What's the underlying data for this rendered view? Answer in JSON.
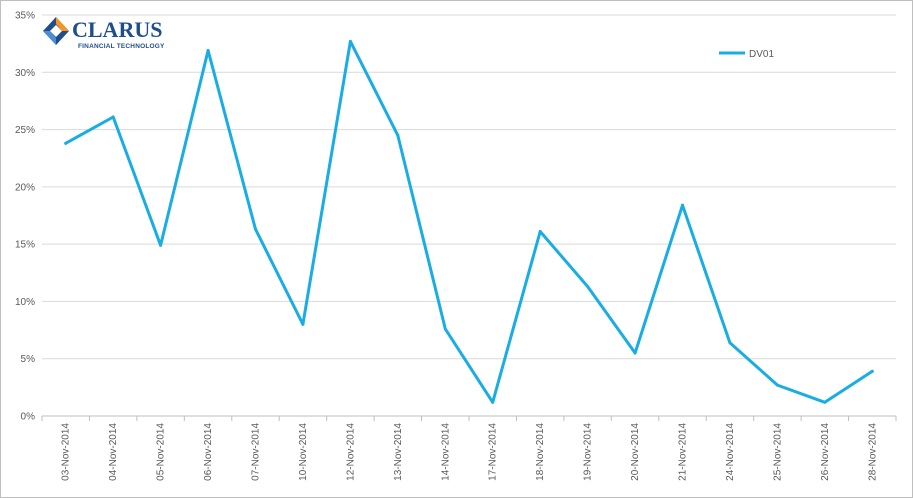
{
  "logo": {
    "name": "CLARUS",
    "tagline": "FINANCIAL TECHNOLOGY"
  },
  "colors": {
    "series": "#1aade3",
    "grid": "#d9d9d9",
    "axis_text": "#595959",
    "logo_blue": "#1f4e8c",
    "logo_orange": "#f7941d"
  },
  "chart_data": {
    "type": "line",
    "title": "",
    "xlabel": "",
    "ylabel": "",
    "ylim": [
      0,
      35
    ],
    "y_ticks": [
      "0%",
      "5%",
      "10%",
      "15%",
      "20%",
      "25%",
      "30%",
      "35%"
    ],
    "grid": true,
    "legend_position": "top-right",
    "categories": [
      "03-Nov-2014",
      "04-Nov-2014",
      "05-Nov-2014",
      "06-Nov-2014",
      "07-Nov-2014",
      "10-Nov-2014",
      "12-Nov-2014",
      "13-Nov-2014",
      "14-Nov-2014",
      "17-Nov-2014",
      "18-Nov-2014",
      "19-Nov-2014",
      "20-Nov-2014",
      "21-Nov-2014",
      "24-Nov-2014",
      "25-Nov-2014",
      "26-Nov-2014",
      "28-Nov-2014"
    ],
    "series": [
      {
        "name": "DV01",
        "values": [
          23.8,
          26.1,
          14.9,
          31.9,
          16.3,
          8.0,
          32.7,
          24.5,
          7.6,
          1.2,
          16.1,
          11.3,
          5.5,
          18.4,
          6.4,
          2.7,
          1.2,
          3.9
        ]
      }
    ]
  }
}
